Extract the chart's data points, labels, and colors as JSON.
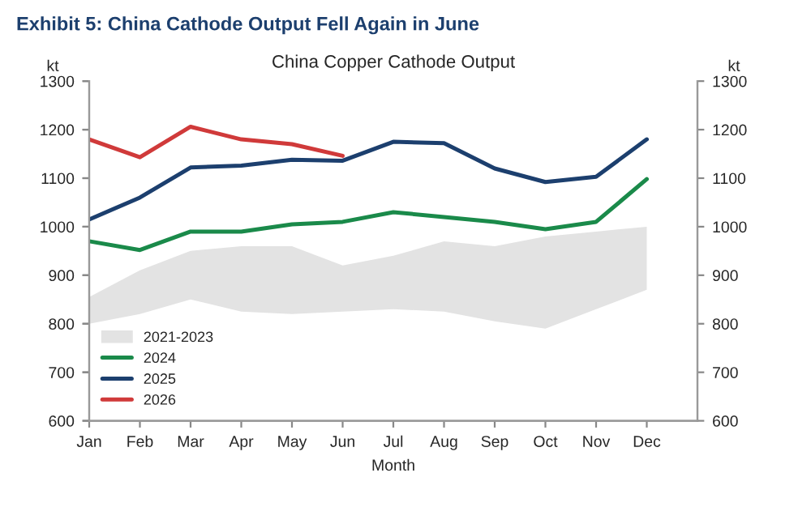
{
  "chart_data": {
    "type": "line",
    "title": "Exhibit 5: China Cathode Output Fell Again in June",
    "subtitle": "China Copper Cathode Output",
    "xlabel": "Month",
    "ylabel": "kt",
    "y2label": "kt",
    "categories": [
      "Jan",
      "Feb",
      "Mar",
      "Apr",
      "May",
      "Jun",
      "Jul",
      "Aug",
      "Sep",
      "Oct",
      "Nov",
      "Dec"
    ],
    "series": [
      {
        "name": "2021-2023",
        "color": "#e3e3e3",
        "values": [
          null,
          null,
          null,
          null,
          null,
          null,
          null,
          null,
          null,
          null,
          null,
          null
        ],
        "upper": [
          855,
          910,
          950,
          960,
          960,
          920,
          940,
          970,
          960,
          980,
          990,
          1000
        ],
        "lower": [
          800,
          820,
          850,
          825,
          820,
          825,
          830,
          825,
          805,
          790,
          830,
          870
        ]
      },
      {
        "name": "2024",
        "color": "#1a8a4a",
        "values": [
          970,
          952,
          990,
          990,
          1005,
          1010,
          1030,
          1020,
          1010,
          995,
          1010,
          1098
        ]
      },
      {
        "name": "2025",
        "color": "#1c3f6e",
        "values": [
          1015,
          1060,
          1122,
          1126,
          1138,
          1136,
          1175,
          1172,
          1120,
          1092,
          1103,
          1180
        ]
      },
      {
        "name": "2026",
        "color": "#d03a3a",
        "values": [
          1180,
          1143,
          1206,
          1180,
          1170,
          1146,
          null,
          null,
          null,
          null,
          null,
          null
        ]
      }
    ],
    "ylim": [
      600,
      1300
    ],
    "yticks": [
      600,
      700,
      800,
      900,
      1000,
      1100,
      1200,
      1300
    ],
    "y2lim": [
      600,
      1300
    ],
    "y2ticks": [
      600,
      700,
      800,
      900,
      1000,
      1100,
      1200,
      1300
    ],
    "legend": "bottom left",
    "grid": false,
    "marker": "none",
    "line_style": "solid"
  }
}
